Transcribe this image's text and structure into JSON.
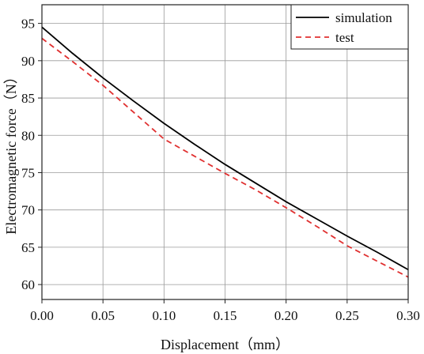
{
  "chart_data": {
    "type": "line",
    "title": "",
    "xlabel": "Displacement（mm）",
    "ylabel": "Electromagnetic force（N）",
    "xlim": [
      0.0,
      0.3
    ],
    "ylim": [
      58,
      97.5
    ],
    "xticks": [
      "0.00",
      "0.05",
      "0.10",
      "0.15",
      "0.20",
      "0.25",
      "0.30"
    ],
    "yticks": [
      "60",
      "65",
      "70",
      "75",
      "80",
      "85",
      "90",
      "95"
    ],
    "grid": true,
    "legend_position": "top-right",
    "series": [
      {
        "name": "simulation",
        "color": "#000000",
        "style": "solid",
        "x": [
          0.0,
          0.025,
          0.05,
          0.075,
          0.1,
          0.125,
          0.15,
          0.175,
          0.2,
          0.225,
          0.25,
          0.275,
          0.3
        ],
        "y": [
          94.5,
          91.0,
          87.7,
          84.6,
          81.6,
          78.8,
          76.1,
          73.6,
          71.1,
          68.8,
          66.5,
          64.3,
          62.0
        ]
      },
      {
        "name": "test",
        "color": "#e03030",
        "style": "dashed",
        "x": [
          0.0,
          0.025,
          0.05,
          0.075,
          0.1,
          0.125,
          0.15,
          0.175,
          0.2,
          0.225,
          0.25,
          0.275,
          0.3
        ],
        "y": [
          93.0,
          89.9,
          86.7,
          83.1,
          79.5,
          77.2,
          74.9,
          72.7,
          70.3,
          67.8,
          65.2,
          63.1,
          61.0
        ]
      }
    ]
  }
}
